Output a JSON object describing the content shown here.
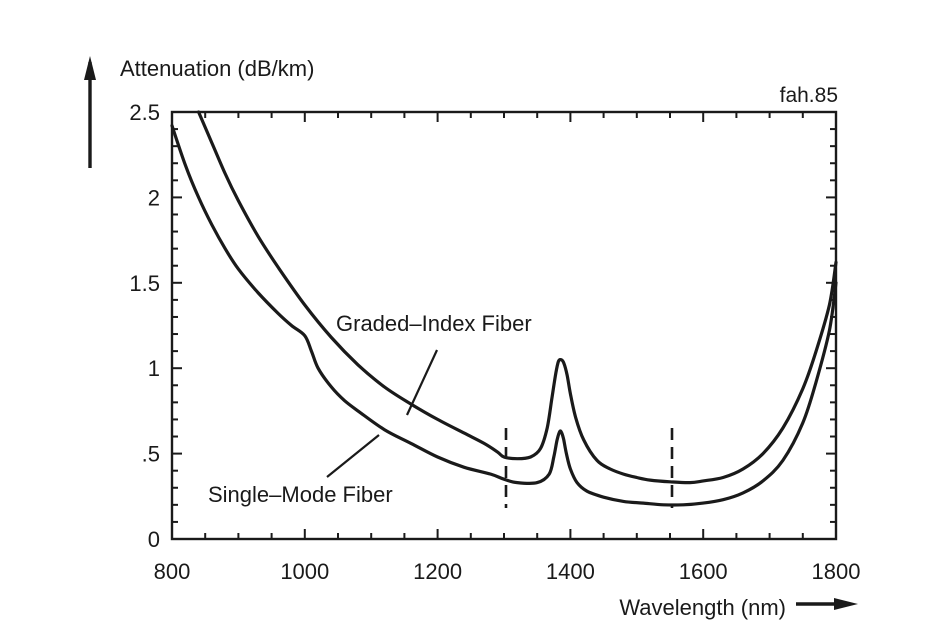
{
  "chart_data": {
    "type": "line",
    "ylabel": "Attenuation (dB/km)",
    "xlabel": "Wavelength (nm)",
    "tag": "fah.85",
    "xlim": [
      800,
      1800
    ],
    "ylim": [
      0,
      2.5
    ],
    "x_ticks": [
      800,
      1000,
      1200,
      1400,
      1600,
      1800
    ],
    "x_tick_labels": [
      "800",
      "1000",
      "1200",
      "1400",
      "1600",
      "1800"
    ],
    "y_ticks": [
      0,
      0.5,
      1,
      1.5,
      2,
      2.5
    ],
    "y_tick_labels": [
      "0",
      ".5",
      "1",
      "1.5",
      "2",
      "2.5"
    ],
    "grid": false,
    "markers_x": [
      1300,
      1550
    ],
    "series": [
      {
        "name": "Graded–Index Fiber",
        "x": [
          840,
          860,
          880,
          900,
          930,
          960,
          1000,
          1040,
          1080,
          1120,
          1160,
          1200,
          1240,
          1270,
          1290,
          1300,
          1320,
          1340,
          1355,
          1365,
          1372,
          1378,
          1382,
          1386,
          1390,
          1395,
          1400,
          1408,
          1420,
          1440,
          1460,
          1480,
          1500,
          1520,
          1550,
          1580,
          1600,
          1630,
          1660,
          1690,
          1720,
          1750,
          1770,
          1790,
          1800
        ],
        "y": [
          2.5,
          2.32,
          2.14,
          1.98,
          1.77,
          1.59,
          1.37,
          1.18,
          1.02,
          0.89,
          0.79,
          0.7,
          0.62,
          0.56,
          0.51,
          0.48,
          0.47,
          0.48,
          0.53,
          0.65,
          0.82,
          0.97,
          1.04,
          1.05,
          1.03,
          0.96,
          0.85,
          0.71,
          0.58,
          0.46,
          0.41,
          0.38,
          0.36,
          0.345,
          0.335,
          0.33,
          0.34,
          0.36,
          0.41,
          0.5,
          0.65,
          0.88,
          1.1,
          1.37,
          1.62
        ]
      },
      {
        "name": "Single–Mode Fiber",
        "x": [
          800,
          820,
          840,
          860,
          880,
          900,
          930,
          960,
          980,
          1000,
          1010,
          1020,
          1040,
          1060,
          1080,
          1120,
          1160,
          1200,
          1240,
          1280,
          1300,
          1320,
          1350,
          1368,
          1375,
          1380,
          1384,
          1387,
          1390,
          1394,
          1400,
          1410,
          1425,
          1450,
          1480,
          1510,
          1540,
          1570,
          1600,
          1630,
          1660,
          1690,
          1720,
          1750,
          1770,
          1790,
          1800
        ],
        "y": [
          2.42,
          2.19,
          2.0,
          1.84,
          1.7,
          1.58,
          1.44,
          1.32,
          1.25,
          1.19,
          1.1,
          1.0,
          0.89,
          0.81,
          0.75,
          0.64,
          0.56,
          0.48,
          0.42,
          0.38,
          0.35,
          0.33,
          0.33,
          0.38,
          0.48,
          0.58,
          0.63,
          0.62,
          0.58,
          0.5,
          0.41,
          0.33,
          0.28,
          0.245,
          0.22,
          0.21,
          0.2,
          0.2,
          0.21,
          0.23,
          0.27,
          0.34,
          0.46,
          0.68,
          0.92,
          1.22,
          1.5
        ]
      }
    ]
  }
}
